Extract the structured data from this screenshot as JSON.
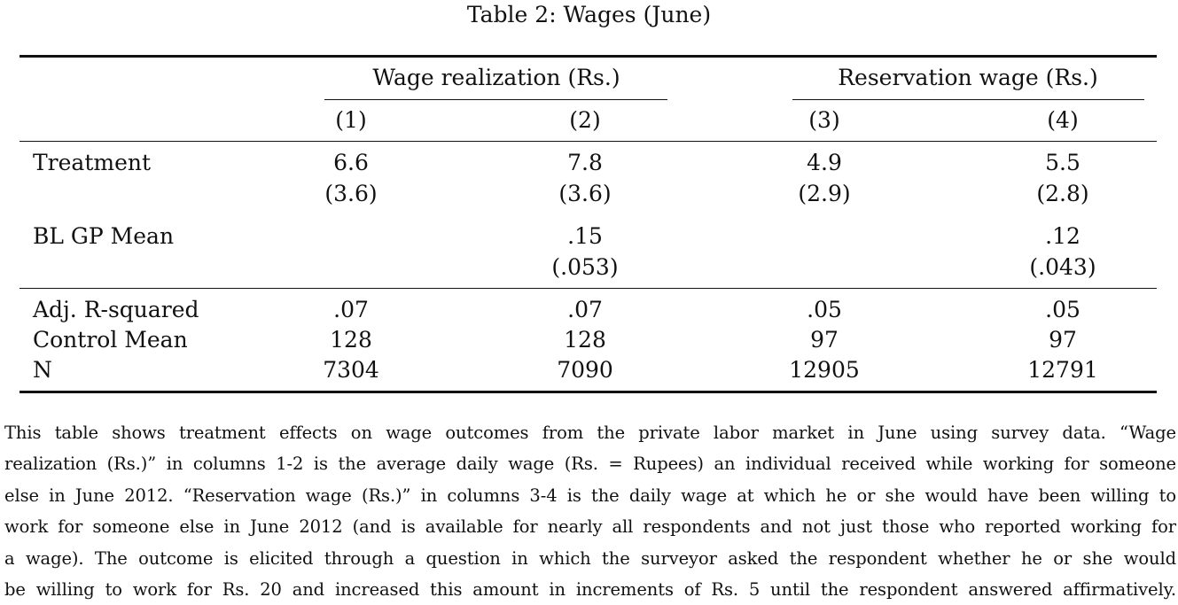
{
  "table": {
    "caption": "Table 2:  Wages (June)",
    "group_headers": [
      "Wage realization (Rs.)",
      "Reservation wage (Rs.)"
    ],
    "column_numbers": [
      "(1)",
      "(2)",
      "(3)",
      "(4)"
    ],
    "rows": {
      "treatment": {
        "label": "Treatment",
        "values": [
          "6.6",
          "7.8",
          "4.9",
          "5.5"
        ],
        "se": [
          "(3.6)",
          "(3.6)",
          "(2.9)",
          "(2.8)"
        ]
      },
      "bl_gp_mean": {
        "label": "BL GP Mean",
        "values": [
          "",
          ".15",
          "",
          ".12"
        ],
        "se": [
          "",
          "(.053)",
          "",
          "(.043)"
        ]
      },
      "adj_r2": {
        "label": "Adj. R-squared",
        "values": [
          ".07",
          ".07",
          ".05",
          ".05"
        ]
      },
      "control_mean": {
        "label": "Control Mean",
        "values": [
          "128",
          "128",
          "97",
          "97"
        ]
      },
      "n": {
        "label": "N",
        "values": [
          "7304",
          "7090",
          "12905",
          "12791"
        ]
      }
    }
  },
  "notes": {
    "lines": [
      "This table shows treatment effects on wage outcomes from the private labor market in June using survey data.  “Wage",
      "realization (Rs.)” in columns 1-2 is the average daily wage (Rs. = Rupees) an individual received while working for someone",
      "else in June 2012.  “Reservation wage (Rs.)” in columns 3-4 is the daily wage at which he or she would have been willing to",
      "work for someone else in June 2012 (and is available for nearly all respondents and not just those who reported working for",
      "a wage).  The outcome is elicited through a question in which the surveyor asked the respondent whether he or she would",
      "be willing to work for Rs. 20 and increased this amount in increments of Rs. 5 until the respondent answered affirmatively."
    ]
  }
}
